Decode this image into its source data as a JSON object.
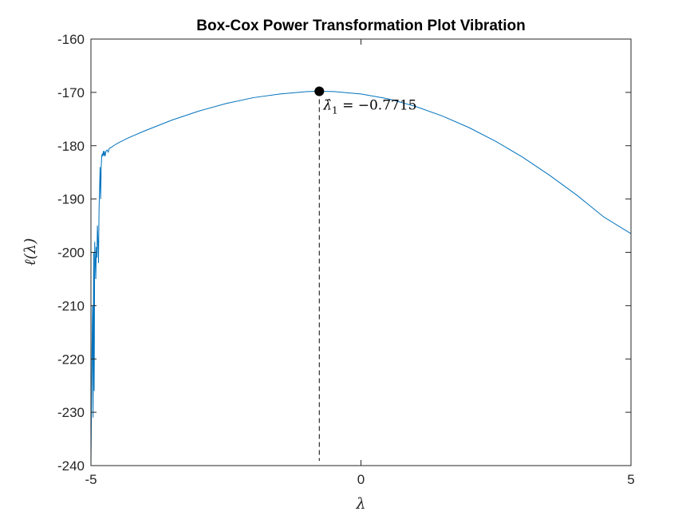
{
  "chart_data": {
    "type": "line",
    "title": "Box-Cox Power Transformation Plot Vibration",
    "xlabel": "λ",
    "ylabel": "ℓ(λ)",
    "xlim": [
      -5,
      5
    ],
    "ylim": [
      -240,
      -160
    ],
    "xticks": [
      -5,
      0,
      5
    ],
    "xtick_labels": [
      "-5",
      "0",
      "5"
    ],
    "yticks": [
      -240,
      -230,
      -220,
      -210,
      -200,
      -190,
      -180,
      -170,
      -160
    ],
    "ytick_labels": [
      "-240",
      "-230",
      "-220",
      "-210",
      "-200",
      "-190",
      "-180",
      "-170",
      "-160"
    ],
    "grid": false,
    "line_color": "#0072BD",
    "series": [
      {
        "x": [
          -5.0,
          -4.98,
          -4.97,
          -4.96,
          -4.95,
          -4.94,
          -4.93,
          -4.92,
          -4.91,
          -4.9,
          -4.89,
          -4.88,
          -4.87,
          -4.86,
          -4.85,
          -4.84,
          -4.83,
          -4.82,
          -4.81,
          -4.8,
          -4.79,
          -4.78,
          -4.77,
          -4.76,
          -4.75,
          -4.74,
          -4.72,
          -4.7,
          -4.68,
          -4.66,
          -4.62,
          -4.58,
          -4.5,
          -4.3,
          -4.0,
          -3.5,
          -3.0,
          -2.5,
          -2.0,
          -1.5,
          -1.0,
          -0.7715,
          -0.5,
          0.0,
          0.5,
          1.0,
          1.5,
          2.0,
          2.5,
          3.0,
          3.5,
          4.0,
          4.5,
          5.0
        ],
        "y": [
          -240.0,
          -218.0,
          -210.0,
          -231.0,
          -200.0,
          -226.0,
          -198.0,
          -201.0,
          -205.0,
          -199.0,
          -201.0,
          -195.0,
          -198.0,
          -202.0,
          -192.0,
          -188.0,
          -184.0,
          -190.0,
          -184.0,
          -182.0,
          -181.5,
          -182.0,
          -181.0,
          -181.8,
          -181.0,
          -182.0,
          -181.0,
          -180.8,
          -181.2,
          -180.5,
          -180.3,
          -180.0,
          -179.5,
          -178.5,
          -177.2,
          -175.2,
          -173.5,
          -172.1,
          -171.0,
          -170.3,
          -169.85,
          -169.8,
          -169.85,
          -170.3,
          -171.2,
          -172.6,
          -174.4,
          -176.6,
          -179.2,
          -182.2,
          -185.6,
          -189.3,
          -193.4,
          -196.5
        ]
      }
    ],
    "optimum": {
      "lambda": -0.7715,
      "loglik": -169.8,
      "label_prefix": "λ̂",
      "label_subscript": "1",
      "label_suffix": " = −0.7715"
    }
  }
}
